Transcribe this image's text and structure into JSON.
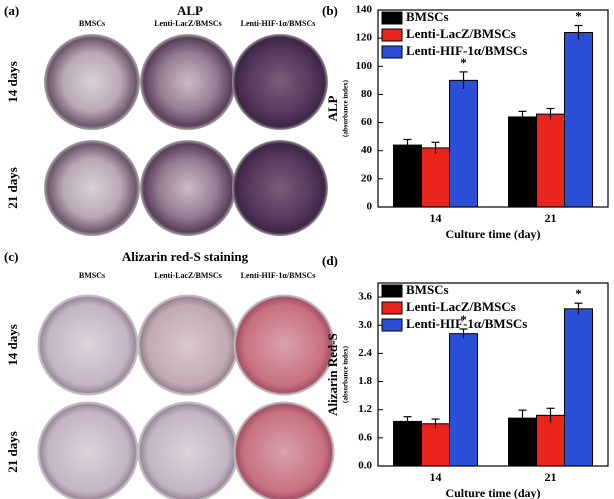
{
  "panels": [
    {
      "label": "(a)",
      "title": "ALP",
      "columns": [
        "BMSCs",
        "Lenti-LacZ/BMSCs",
        "Lenti-HIF-1α/BMSCs"
      ],
      "rows": [
        "14 days",
        "21 days"
      ]
    },
    {
      "label": "(c)",
      "title": "Alizarin red-S staining",
      "columns": [
        "BMSCs",
        "Lenti-LacZ/BMSCs",
        "Lenti-HIF-1α/BMSCs"
      ],
      "rows": [
        "14 days",
        "21 days"
      ]
    }
  ],
  "chart_data": [
    {
      "type": "bar",
      "label": "(b)",
      "y_label": "ALP",
      "y_sublabel": "(absorbance index)",
      "x_label": "Culture time (day)",
      "categories": [
        "14",
        "21"
      ],
      "series": [
        {
          "name": "BMSCs",
          "color": "#000000",
          "values": [
            44,
            64
          ],
          "errors": [
            4,
            4
          ]
        },
        {
          "name": "Lenti-LacZ/BMSCs",
          "color": "#e8241c",
          "values": [
            42,
            66
          ],
          "errors": [
            4,
            4
          ]
        },
        {
          "name": "Lenti-HIF-1α/BMSCs",
          "color": "#2b4fd6",
          "values": [
            90,
            124
          ],
          "errors": [
            6,
            5
          ]
        }
      ],
      "significance": [
        "*",
        "*"
      ],
      "ylim": [
        0,
        140
      ],
      "yticks": [
        0,
        20,
        40,
        60,
        80,
        100,
        120,
        140
      ],
      "legend": "upper left"
    },
    {
      "type": "bar",
      "label": "(d)",
      "y_label": "Alizarin Red-S",
      "y_sublabel": "(absorbance index)",
      "x_label": "Culture time (day)",
      "categories": [
        "14",
        "21"
      ],
      "series": [
        {
          "name": "BMSCs",
          "color": "#000000",
          "values": [
            0.95,
            1.02
          ],
          "errors": [
            0.1,
            0.17
          ]
        },
        {
          "name": "Lenti-LacZ/BMSCs",
          "color": "#e8241c",
          "values": [
            0.9,
            1.08
          ],
          "errors": [
            0.1,
            0.15
          ]
        },
        {
          "name": "Lenti-HIF-1α/BMSCs",
          "color": "#2b4fd6",
          "values": [
            2.82,
            3.35
          ],
          "errors": [
            0.1,
            0.12
          ]
        }
      ],
      "significance": [
        "*",
        "*"
      ],
      "ylim": [
        0,
        3.9
      ],
      "yticks": [
        {
          "value": 0,
          "label": "0.0"
        },
        0.6,
        1.2,
        1.8,
        2.4,
        {
          "value": 3,
          "label": "3.0"
        },
        3.6
      ],
      "legend": "upper left"
    }
  ]
}
